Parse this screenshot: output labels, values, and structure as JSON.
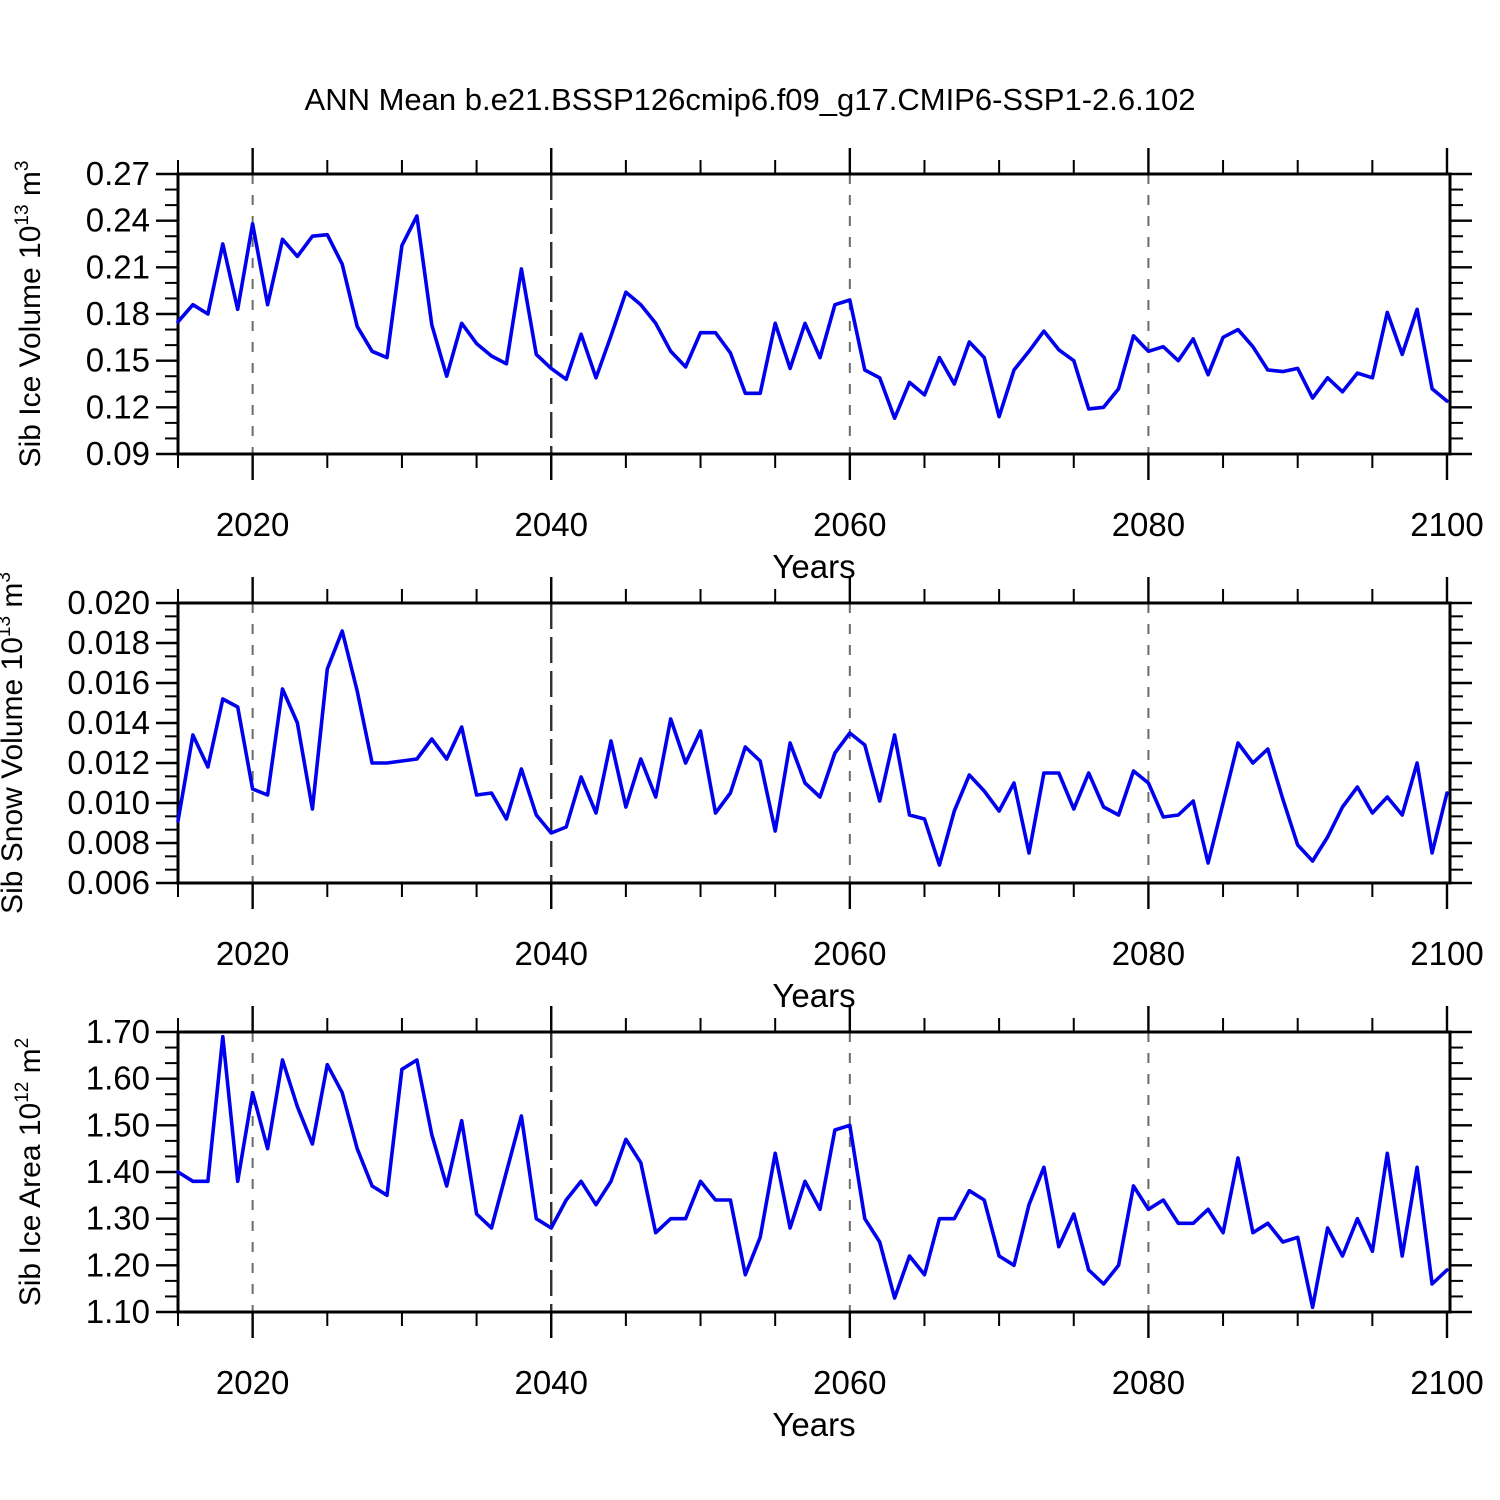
{
  "title": "ANN Mean b.e21.BSSP126cmip6.f09_g17.CMIP6-SSP1-2.6.102",
  "figure": {
    "line_color": "#0000ee",
    "grid_color": "#6b6b6b",
    "grid_color_dark": "#2f2f2f",
    "frame_color": "#000000",
    "background": "#ffffff"
  },
  "chart_data": [
    {
      "type": "line",
      "name": "sib-ice-volume",
      "ylabel": "Sib Ice Volume 10^13 m^3",
      "ylabel_parts": {
        "main": "Sib Ice Volume 10",
        "sup1": "13",
        "mid": " m",
        "sup2": "3"
      },
      "xlabel": "Years",
      "x_start": 2015,
      "x_end": 2100,
      "x_step": 1,
      "x_ticks_major": [
        2020,
        2040,
        2060,
        2080,
        2100
      ],
      "x_tick_labels": [
        "2020",
        "2040",
        "2060",
        "2080",
        "2100"
      ],
      "x_minor_step": 5,
      "grid_years": [
        2020,
        2040,
        2060,
        2080
      ],
      "ylim": [
        0.09,
        0.27
      ],
      "y_ticks": [
        0.09,
        0.12,
        0.15,
        0.18,
        0.21,
        0.24,
        0.27
      ],
      "y_tick_labels": [
        "0.09",
        "0.12",
        "0.15",
        "0.18",
        "0.21",
        "0.24",
        "0.27"
      ],
      "y_minor_divisions": 3,
      "legend": "none",
      "grid": "vertical-dashed-at-major-ticks",
      "values": [
        0.175,
        0.186,
        0.18,
        0.225,
        0.183,
        0.238,
        0.186,
        0.228,
        0.217,
        0.23,
        0.231,
        0.212,
        0.172,
        0.156,
        0.152,
        0.224,
        0.243,
        0.173,
        0.14,
        0.174,
        0.161,
        0.153,
        0.148,
        0.209,
        0.154,
        0.145,
        0.138,
        0.167,
        0.139,
        0.166,
        0.194,
        0.186,
        0.174,
        0.156,
        0.146,
        0.168,
        0.168,
        0.155,
        0.129,
        0.129,
        0.174,
        0.145,
        0.174,
        0.152,
        0.186,
        0.189,
        0.144,
        0.139,
        0.113,
        0.136,
        0.128,
        0.152,
        0.135,
        0.162,
        0.152,
        0.114,
        0.144,
        0.156,
        0.169,
        0.157,
        0.15,
        0.119,
        0.12,
        0.132,
        0.166,
        0.156,
        0.159,
        0.15,
        0.164,
        0.141,
        0.165,
        0.17,
        0.159,
        0.144,
        0.143,
        0.145,
        0.126,
        0.139,
        0.13,
        0.142,
        0.139,
        0.181,
        0.154,
        0.183,
        0.132,
        0.124
      ]
    },
    {
      "type": "line",
      "name": "sib-snow-volume",
      "ylabel": "Sib Snow Volume 10^13 m^3",
      "ylabel_parts": {
        "main": "Sib Snow Volume 10",
        "sup1": "13",
        "mid": " m",
        "sup2": "3"
      },
      "xlabel": "Years",
      "x_start": 2015,
      "x_end": 2100,
      "x_step": 1,
      "x_ticks_major": [
        2020,
        2040,
        2060,
        2080,
        2100
      ],
      "x_tick_labels": [
        "2020",
        "2040",
        "2060",
        "2080",
        "2100"
      ],
      "x_minor_step": 5,
      "grid_years": [
        2020,
        2040,
        2060,
        2080
      ],
      "ylim": [
        0.006,
        0.02
      ],
      "y_ticks": [
        0.006,
        0.008,
        0.01,
        0.012,
        0.014,
        0.016,
        0.018,
        0.02
      ],
      "y_tick_labels": [
        "0.006",
        "0.008",
        "0.010",
        "0.012",
        "0.014",
        "0.016",
        "0.018",
        "0.020"
      ],
      "y_minor_divisions": 3,
      "legend": "none",
      "grid": "vertical-dashed-at-major-ticks",
      "values": [
        0.0091,
        0.0134,
        0.0118,
        0.0152,
        0.0148,
        0.0107,
        0.0104,
        0.0157,
        0.014,
        0.0097,
        0.0167,
        0.0186,
        0.0156,
        0.012,
        0.012,
        0.0121,
        0.0122,
        0.0132,
        0.0122,
        0.0138,
        0.0104,
        0.0105,
        0.0092,
        0.0117,
        0.0094,
        0.0085,
        0.0088,
        0.0113,
        0.0095,
        0.0131,
        0.0098,
        0.0122,
        0.0103,
        0.0142,
        0.012,
        0.0136,
        0.0095,
        0.0105,
        0.0128,
        0.0121,
        0.0086,
        0.013,
        0.011,
        0.0103,
        0.0125,
        0.0135,
        0.0129,
        0.0101,
        0.0134,
        0.0094,
        0.0092,
        0.0069,
        0.0096,
        0.0114,
        0.0106,
        0.0096,
        0.011,
        0.0075,
        0.0115,
        0.0115,
        0.0097,
        0.0115,
        0.0098,
        0.0094,
        0.0116,
        0.011,
        0.0093,
        0.0094,
        0.0101,
        0.007,
        0.01,
        0.013,
        0.012,
        0.0127,
        0.0102,
        0.0079,
        0.0071,
        0.0083,
        0.0098,
        0.0108,
        0.0095,
        0.0103,
        0.0094,
        0.012,
        0.0075,
        0.0105
      ]
    },
    {
      "type": "line",
      "name": "sib-ice-area",
      "ylabel": "Sib Ice Area 10^12 m^2",
      "ylabel_parts": {
        "main": "Sib Ice Area 10",
        "sup1": "12",
        "mid": " m",
        "sup2": "2"
      },
      "xlabel": "Years",
      "x_start": 2015,
      "x_end": 2100,
      "x_step": 1,
      "x_ticks_major": [
        2020,
        2040,
        2060,
        2080,
        2100
      ],
      "x_tick_labels": [
        "2020",
        "2040",
        "2060",
        "2080",
        "2100"
      ],
      "x_minor_step": 5,
      "grid_years": [
        2020,
        2040,
        2060,
        2080
      ],
      "ylim": [
        1.1,
        1.7
      ],
      "y_ticks": [
        1.1,
        1.2,
        1.3,
        1.4,
        1.5,
        1.6,
        1.7
      ],
      "y_tick_labels": [
        "1.10",
        "1.20",
        "1.30",
        "1.40",
        "1.50",
        "1.60",
        "1.70"
      ],
      "y_minor_divisions": 3,
      "legend": "none",
      "grid": "vertical-dashed-at-major-ticks",
      "values": [
        1.4,
        1.38,
        1.38,
        1.69,
        1.38,
        1.57,
        1.45,
        1.64,
        1.54,
        1.46,
        1.63,
        1.57,
        1.45,
        1.37,
        1.35,
        1.62,
        1.64,
        1.48,
        1.37,
        1.51,
        1.31,
        1.28,
        1.4,
        1.52,
        1.3,
        1.28,
        1.34,
        1.38,
        1.33,
        1.38,
        1.47,
        1.42,
        1.27,
        1.3,
        1.3,
        1.38,
        1.34,
        1.34,
        1.18,
        1.26,
        1.44,
        1.28,
        1.38,
        1.32,
        1.49,
        1.5,
        1.3,
        1.25,
        1.13,
        1.22,
        1.18,
        1.3,
        1.3,
        1.36,
        1.34,
        1.22,
        1.2,
        1.33,
        1.41,
        1.24,
        1.31,
        1.19,
        1.16,
        1.2,
        1.37,
        1.32,
        1.34,
        1.29,
        1.29,
        1.32,
        1.27,
        1.43,
        1.27,
        1.29,
        1.25,
        1.26,
        1.11,
        1.28,
        1.22,
        1.3,
        1.23,
        1.44,
        1.22,
        1.41,
        1.16,
        1.19
      ]
    }
  ]
}
